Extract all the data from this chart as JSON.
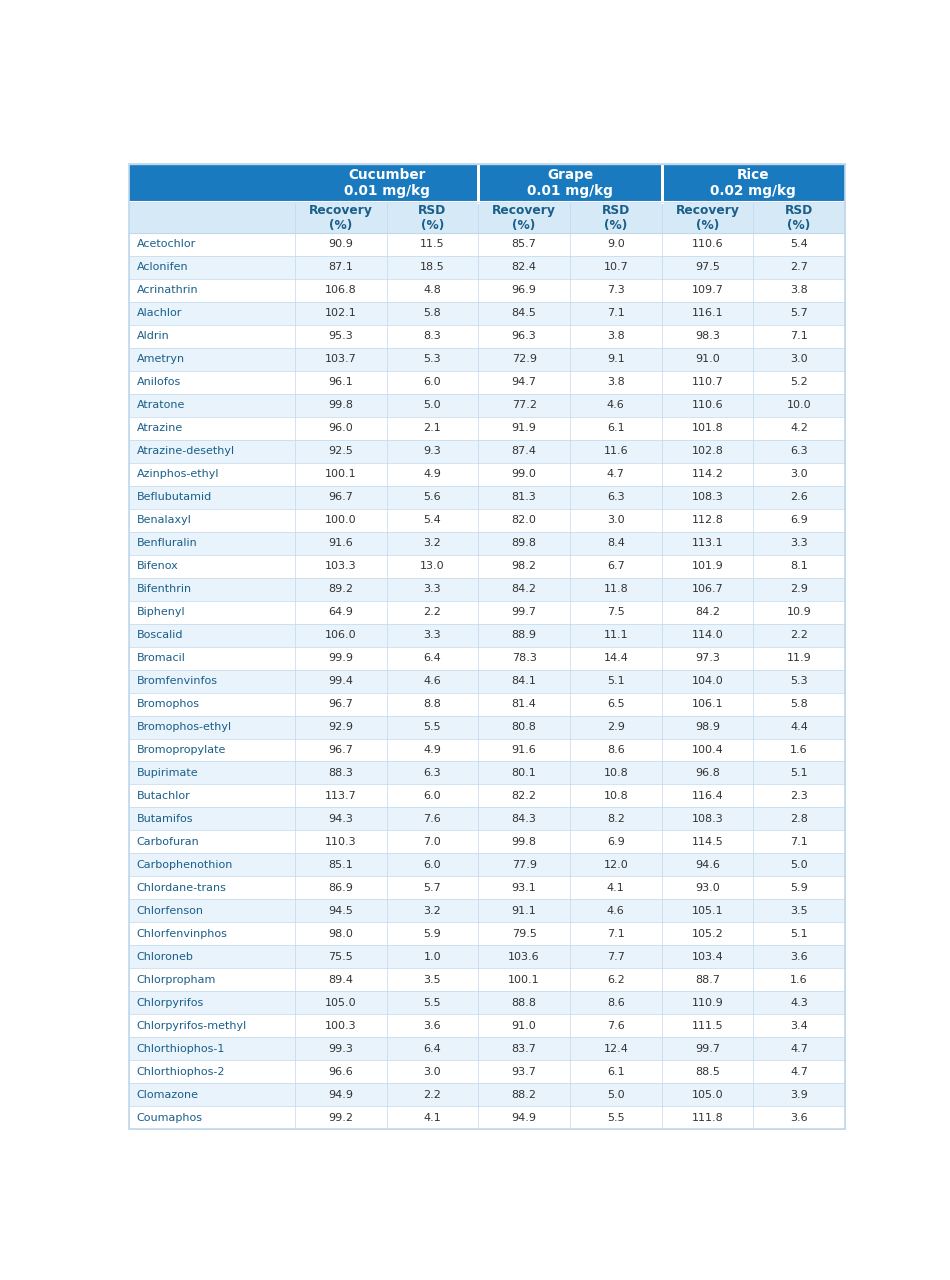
{
  "header_bg_color": "#1a7abf",
  "subheader_bg_color": "#d6e9f7",
  "row_odd_color": "#ffffff",
  "row_even_color": "#e8f3fb",
  "header_text_color": "#ffffff",
  "subheader_text_color": "#1a5f8a",
  "cell_text_color": "#333333",
  "pesticide_text_color": "#1a5f8a",
  "border_color": "#c0d8ec",
  "group_labels": [
    "Cucumber\n0.01 mg/kg",
    "Grape\n0.01 mg/kg",
    "Rice\n0.02 mg/kg"
  ],
  "sub_col_labels": [
    "Recovery\n(%)",
    "RSD\n(%)",
    "Recovery\n(%)",
    "RSD\n(%)",
    "Recovery\n(%)",
    "RSD\n(%)"
  ],
  "pesticides": [
    "Acetochlor",
    "Aclonifen",
    "Acrinathrin",
    "Alachlor",
    "Aldrin",
    "Ametryn",
    "Anilofos",
    "Atratone",
    "Atrazine",
    "Atrazine-desethyl",
    "Azinphos-ethyl",
    "Beflubutamid",
    "Benalaxyl",
    "Benfluralin",
    "Bifenox",
    "Bifenthrin",
    "Biphenyl",
    "Boscalid",
    "Bromacil",
    "Bromfenvinfos",
    "Bromophos",
    "Bromophos-ethyl",
    "Bromopropylate",
    "Bupirimate",
    "Butachlor",
    "Butamifos",
    "Carbofuran",
    "Carbophenothion",
    "Chlordane-trans",
    "Chlorfenson",
    "Chlorfenvinphos",
    "Chloroneb",
    "Chlorpropham",
    "Chlorpyrifos",
    "Chlorpyrifos-methyl",
    "Chlorthiophos-1",
    "Chlorthiophos-2",
    "Clomazone",
    "Coumaphos"
  ],
  "data": [
    [
      90.9,
      11.5,
      85.7,
      9.0,
      110.6,
      5.4
    ],
    [
      87.1,
      18.5,
      82.4,
      10.7,
      97.5,
      2.7
    ],
    [
      106.8,
      4.8,
      96.9,
      7.3,
      109.7,
      3.8
    ],
    [
      102.1,
      5.8,
      84.5,
      7.1,
      116.1,
      5.7
    ],
    [
      95.3,
      8.3,
      96.3,
      3.8,
      98.3,
      7.1
    ],
    [
      103.7,
      5.3,
      72.9,
      9.1,
      91.0,
      3.0
    ],
    [
      96.1,
      6.0,
      94.7,
      3.8,
      110.7,
      5.2
    ],
    [
      99.8,
      5.0,
      77.2,
      4.6,
      110.6,
      10.0
    ],
    [
      96.0,
      2.1,
      91.9,
      6.1,
      101.8,
      4.2
    ],
    [
      92.5,
      9.3,
      87.4,
      11.6,
      102.8,
      6.3
    ],
    [
      100.1,
      4.9,
      99.0,
      4.7,
      114.2,
      3.0
    ],
    [
      96.7,
      5.6,
      81.3,
      6.3,
      108.3,
      2.6
    ],
    [
      100.0,
      5.4,
      82.0,
      3.0,
      112.8,
      6.9
    ],
    [
      91.6,
      3.2,
      89.8,
      8.4,
      113.1,
      3.3
    ],
    [
      103.3,
      13.0,
      98.2,
      6.7,
      101.9,
      8.1
    ],
    [
      89.2,
      3.3,
      84.2,
      11.8,
      106.7,
      2.9
    ],
    [
      64.9,
      2.2,
      99.7,
      7.5,
      84.2,
      10.9
    ],
    [
      106.0,
      3.3,
      88.9,
      11.1,
      114.0,
      2.2
    ],
    [
      99.9,
      6.4,
      78.3,
      14.4,
      97.3,
      11.9
    ],
    [
      99.4,
      4.6,
      84.1,
      5.1,
      104.0,
      5.3
    ],
    [
      96.7,
      8.8,
      81.4,
      6.5,
      106.1,
      5.8
    ],
    [
      92.9,
      5.5,
      80.8,
      2.9,
      98.9,
      4.4
    ],
    [
      96.7,
      4.9,
      91.6,
      8.6,
      100.4,
      1.6
    ],
    [
      88.3,
      6.3,
      80.1,
      10.8,
      96.8,
      5.1
    ],
    [
      113.7,
      6.0,
      82.2,
      10.8,
      116.4,
      2.3
    ],
    [
      94.3,
      7.6,
      84.3,
      8.2,
      108.3,
      2.8
    ],
    [
      110.3,
      7.0,
      99.8,
      6.9,
      114.5,
      7.1
    ],
    [
      85.1,
      6.0,
      77.9,
      12.0,
      94.6,
      5.0
    ],
    [
      86.9,
      5.7,
      93.1,
      4.1,
      93.0,
      5.9
    ],
    [
      94.5,
      3.2,
      91.1,
      4.6,
      105.1,
      3.5
    ],
    [
      98.0,
      5.9,
      79.5,
      7.1,
      105.2,
      5.1
    ],
    [
      75.5,
      1.0,
      103.6,
      7.7,
      103.4,
      3.6
    ],
    [
      89.4,
      3.5,
      100.1,
      6.2,
      88.7,
      1.6
    ],
    [
      105.0,
      5.5,
      88.8,
      8.6,
      110.9,
      4.3
    ],
    [
      100.3,
      3.6,
      91.0,
      7.6,
      111.5,
      3.4
    ],
    [
      99.3,
      6.4,
      83.7,
      12.4,
      99.7,
      4.7
    ],
    [
      96.6,
      3.0,
      93.7,
      6.1,
      88.5,
      4.7
    ],
    [
      94.9,
      2.2,
      88.2,
      5.0,
      105.0,
      3.9
    ],
    [
      99.2,
      4.1,
      94.9,
      5.5,
      111.8,
      3.6
    ]
  ]
}
